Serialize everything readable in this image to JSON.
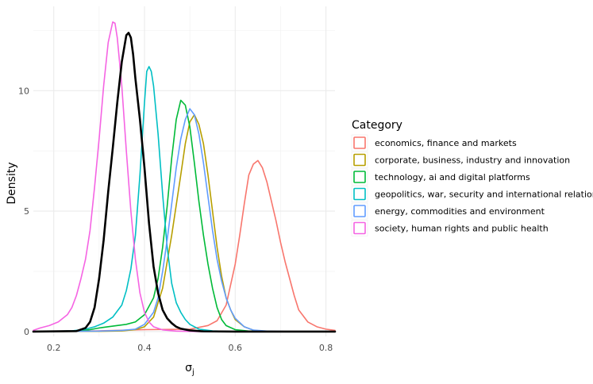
{
  "chart_data": {
    "type": "line",
    "xlabel": "σ",
    "xlabel_sub": "j",
    "ylabel": "Density",
    "xlim": [
      0.155,
      0.82
    ],
    "ylim": [
      -0.2,
      13.5
    ],
    "xticks": [
      0.2,
      0.4,
      0.6,
      0.8
    ],
    "xtick_labels": [
      "0.2",
      "0.4",
      "0.6",
      "0.8"
    ],
    "yticks": [
      0,
      5,
      10
    ],
    "ytick_labels": [
      "0",
      "5",
      "10"
    ],
    "grid": true,
    "legend_position": "right",
    "legend_title": "Category",
    "series": [
      {
        "name": "economics, finance and markets",
        "color": "#F8766D",
        "points": [
          [
            0.155,
            0.0
          ],
          [
            0.3,
            0.03
          ],
          [
            0.4,
            0.08
          ],
          [
            0.5,
            0.1
          ],
          [
            0.54,
            0.25
          ],
          [
            0.56,
            0.45
          ],
          [
            0.58,
            1.1
          ],
          [
            0.6,
            2.8
          ],
          [
            0.61,
            4.0
          ],
          [
            0.62,
            5.3
          ],
          [
            0.63,
            6.5
          ],
          [
            0.64,
            6.95
          ],
          [
            0.65,
            7.1
          ],
          [
            0.66,
            6.8
          ],
          [
            0.67,
            6.2
          ],
          [
            0.68,
            5.4
          ],
          [
            0.69,
            4.6
          ],
          [
            0.7,
            3.7
          ],
          [
            0.71,
            2.9
          ],
          [
            0.72,
            2.2
          ],
          [
            0.73,
            1.5
          ],
          [
            0.74,
            0.9
          ],
          [
            0.76,
            0.4
          ],
          [
            0.78,
            0.2
          ],
          [
            0.8,
            0.1
          ],
          [
            0.82,
            0.05
          ]
        ]
      },
      {
        "name": "corporate, business, industry and innovation",
        "color": "#B79F00",
        "points": [
          [
            0.155,
            0.0
          ],
          [
            0.3,
            0.01
          ],
          [
            0.35,
            0.03
          ],
          [
            0.38,
            0.08
          ],
          [
            0.4,
            0.2
          ],
          [
            0.42,
            0.6
          ],
          [
            0.44,
            1.8
          ],
          [
            0.46,
            4.0
          ],
          [
            0.48,
            6.5
          ],
          [
            0.49,
            7.8
          ],
          [
            0.5,
            8.7
          ],
          [
            0.51,
            9.0
          ],
          [
            0.52,
            8.6
          ],
          [
            0.53,
            7.8
          ],
          [
            0.54,
            6.5
          ],
          [
            0.55,
            5.0
          ],
          [
            0.56,
            3.5
          ],
          [
            0.57,
            2.3
          ],
          [
            0.58,
            1.4
          ],
          [
            0.59,
            0.9
          ],
          [
            0.6,
            0.5
          ],
          [
            0.62,
            0.2
          ],
          [
            0.64,
            0.06
          ],
          [
            0.66,
            0.02
          ],
          [
            0.7,
            0.0
          ],
          [
            0.82,
            0.0
          ]
        ]
      },
      {
        "name": "technology, ai and digital platforms",
        "color": "#00BA38",
        "points": [
          [
            0.155,
            0.0
          ],
          [
            0.25,
            0.02
          ],
          [
            0.28,
            0.08
          ],
          [
            0.3,
            0.15
          ],
          [
            0.32,
            0.2
          ],
          [
            0.34,
            0.25
          ],
          [
            0.36,
            0.3
          ],
          [
            0.38,
            0.4
          ],
          [
            0.4,
            0.7
          ],
          [
            0.42,
            1.4
          ],
          [
            0.43,
            2.2
          ],
          [
            0.44,
            3.5
          ],
          [
            0.45,
            5.2
          ],
          [
            0.46,
            7.2
          ],
          [
            0.47,
            8.8
          ],
          [
            0.48,
            9.6
          ],
          [
            0.49,
            9.4
          ],
          [
            0.5,
            8.5
          ],
          [
            0.51,
            7.0
          ],
          [
            0.52,
            5.4
          ],
          [
            0.53,
            4.0
          ],
          [
            0.54,
            2.8
          ],
          [
            0.55,
            1.8
          ],
          [
            0.56,
            1.0
          ],
          [
            0.57,
            0.5
          ],
          [
            0.58,
            0.25
          ],
          [
            0.6,
            0.08
          ],
          [
            0.63,
            0.02
          ],
          [
            0.7,
            0.0
          ],
          [
            0.82,
            0.0
          ]
        ]
      },
      {
        "name": "geopolitics, war, security and international relations",
        "color": "#00BFC4",
        "points": [
          [
            0.155,
            0.0
          ],
          [
            0.24,
            0.03
          ],
          [
            0.27,
            0.1
          ],
          [
            0.29,
            0.2
          ],
          [
            0.31,
            0.35
          ],
          [
            0.33,
            0.6
          ],
          [
            0.35,
            1.1
          ],
          [
            0.36,
            1.7
          ],
          [
            0.37,
            2.6
          ],
          [
            0.38,
            4.0
          ],
          [
            0.39,
            6.5
          ],
          [
            0.4,
            9.5
          ],
          [
            0.405,
            10.8
          ],
          [
            0.41,
            11.0
          ],
          [
            0.415,
            10.8
          ],
          [
            0.42,
            10.2
          ],
          [
            0.43,
            8.2
          ],
          [
            0.44,
            5.7
          ],
          [
            0.45,
            3.5
          ],
          [
            0.46,
            2.0
          ],
          [
            0.47,
            1.2
          ],
          [
            0.48,
            0.8
          ],
          [
            0.49,
            0.5
          ],
          [
            0.5,
            0.3
          ],
          [
            0.52,
            0.1
          ],
          [
            0.55,
            0.03
          ],
          [
            0.6,
            0.0
          ],
          [
            0.82,
            0.0
          ]
        ]
      },
      {
        "name": "energy, commodities and environment",
        "color": "#619CFF",
        "points": [
          [
            0.155,
            0.0
          ],
          [
            0.3,
            0.02
          ],
          [
            0.35,
            0.05
          ],
          [
            0.38,
            0.1
          ],
          [
            0.4,
            0.3
          ],
          [
            0.42,
            0.8
          ],
          [
            0.43,
            1.4
          ],
          [
            0.44,
            2.5
          ],
          [
            0.45,
            3.8
          ],
          [
            0.46,
            5.3
          ],
          [
            0.47,
            6.8
          ],
          [
            0.48,
            8.0
          ],
          [
            0.49,
            8.8
          ],
          [
            0.5,
            9.25
          ],
          [
            0.51,
            9.0
          ],
          [
            0.52,
            8.2
          ],
          [
            0.53,
            7.0
          ],
          [
            0.54,
            5.6
          ],
          [
            0.55,
            4.2
          ],
          [
            0.56,
            3.0
          ],
          [
            0.57,
            2.1
          ],
          [
            0.58,
            1.4
          ],
          [
            0.59,
            0.9
          ],
          [
            0.6,
            0.55
          ],
          [
            0.62,
            0.2
          ],
          [
            0.64,
            0.06
          ],
          [
            0.67,
            0.02
          ],
          [
            0.72,
            0.0
          ],
          [
            0.82,
            0.0
          ]
        ]
      },
      {
        "name": "society, human rights and public health",
        "color": "#F564E3",
        "points": [
          [
            0.155,
            0.05
          ],
          [
            0.17,
            0.15
          ],
          [
            0.19,
            0.25
          ],
          [
            0.21,
            0.4
          ],
          [
            0.23,
            0.7
          ],
          [
            0.24,
            1.0
          ],
          [
            0.25,
            1.5
          ],
          [
            0.26,
            2.2
          ],
          [
            0.27,
            3.0
          ],
          [
            0.28,
            4.2
          ],
          [
            0.29,
            6.0
          ],
          [
            0.3,
            8.0
          ],
          [
            0.31,
            10.2
          ],
          [
            0.32,
            12.0
          ],
          [
            0.33,
            12.85
          ],
          [
            0.335,
            12.8
          ],
          [
            0.34,
            12.2
          ],
          [
            0.35,
            10.2
          ],
          [
            0.36,
            7.5
          ],
          [
            0.37,
            5.0
          ],
          [
            0.38,
            3.0
          ],
          [
            0.39,
            1.6
          ],
          [
            0.4,
            0.8
          ],
          [
            0.41,
            0.4
          ],
          [
            0.42,
            0.2
          ],
          [
            0.44,
            0.07
          ],
          [
            0.47,
            0.02
          ],
          [
            0.52,
            0.0
          ],
          [
            0.82,
            0.0
          ]
        ]
      },
      {
        "color": "#000000",
        "points": [
          [
            0.155,
            0.0
          ],
          [
            0.25,
            0.02
          ],
          [
            0.27,
            0.15
          ],
          [
            0.28,
            0.4
          ],
          [
            0.29,
            1.0
          ],
          [
            0.3,
            2.2
          ],
          [
            0.31,
            3.8
          ],
          [
            0.32,
            5.8
          ],
          [
            0.33,
            7.6
          ],
          [
            0.34,
            9.5
          ],
          [
            0.35,
            11.2
          ],
          [
            0.36,
            12.3
          ],
          [
            0.365,
            12.4
          ],
          [
            0.37,
            12.2
          ],
          [
            0.375,
            11.5
          ],
          [
            0.38,
            10.5
          ],
          [
            0.39,
            8.8
          ],
          [
            0.4,
            6.8
          ],
          [
            0.41,
            4.5
          ],
          [
            0.42,
            2.7
          ],
          [
            0.43,
            1.6
          ],
          [
            0.44,
            0.9
          ],
          [
            0.45,
            0.55
          ],
          [
            0.46,
            0.35
          ],
          [
            0.47,
            0.2
          ],
          [
            0.48,
            0.12
          ],
          [
            0.5,
            0.05
          ],
          [
            0.53,
            0.01
          ],
          [
            0.6,
            0.0
          ],
          [
            0.82,
            0.0
          ]
        ]
      }
    ]
  }
}
